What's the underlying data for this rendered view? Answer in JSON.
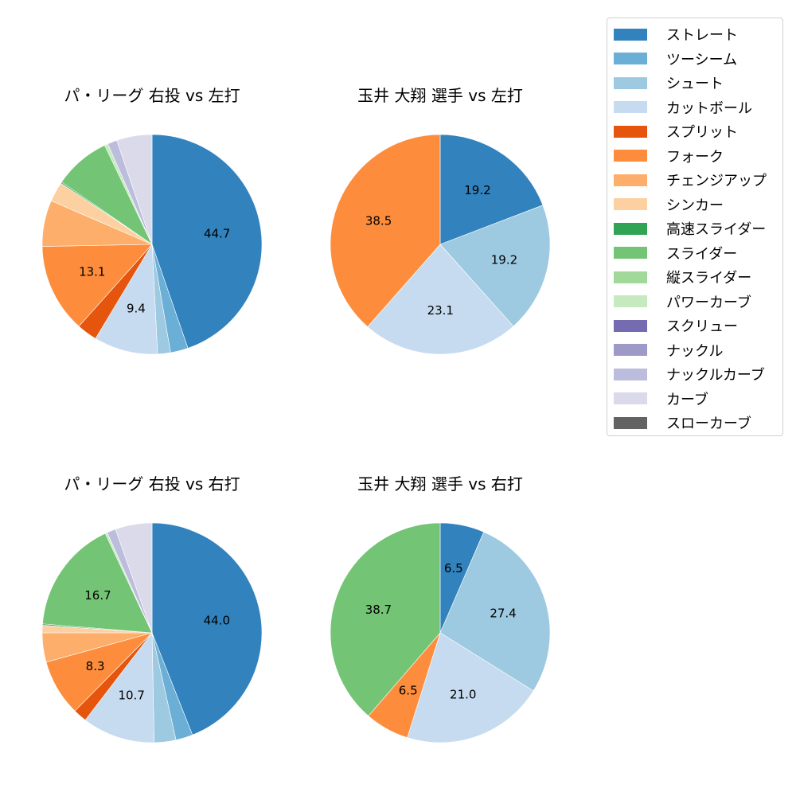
{
  "legend": {
    "items": [
      {
        "label": "ストレート",
        "color": "#3182bd"
      },
      {
        "label": "ツーシーム",
        "color": "#6baed6"
      },
      {
        "label": "シュート",
        "color": "#9ecae1"
      },
      {
        "label": "カットボール",
        "color": "#c6dbef"
      },
      {
        "label": "スプリット",
        "color": "#e6550d"
      },
      {
        "label": "フォーク",
        "color": "#fd8d3c"
      },
      {
        "label": "チェンジアップ",
        "color": "#fdae6b"
      },
      {
        "label": "シンカー",
        "color": "#fdd0a2"
      },
      {
        "label": "高速スライダー",
        "color": "#31a354"
      },
      {
        "label": "スライダー",
        "color": "#74c476"
      },
      {
        "label": "縦スライダー",
        "color": "#a1d99b"
      },
      {
        "label": "パワーカーブ",
        "color": "#c7e9c0"
      },
      {
        "label": "スクリュー",
        "color": "#756bb1"
      },
      {
        "label": "ナックル",
        "color": "#9e9ac8"
      },
      {
        "label": "ナックルカーブ",
        "color": "#bcbddc"
      },
      {
        "label": "カーブ",
        "color": "#dadaeb"
      },
      {
        "label": "スローカーブ",
        "color": "#636363"
      }
    ]
  },
  "chart_data": [
    {
      "type": "pie",
      "title": "パ・リーグ 右投 vs 左打",
      "start_angle": 90,
      "direction": "clockwise",
      "slices": [
        {
          "label": "ストレート",
          "value": 44.7,
          "shown_label": "44.7"
        },
        {
          "label": "ツーシーム",
          "value": 2.6,
          "shown_label": ""
        },
        {
          "label": "シュート",
          "value": 1.9,
          "shown_label": ""
        },
        {
          "label": "カットボール",
          "value": 9.4,
          "shown_label": "9.4"
        },
        {
          "label": "スプリット",
          "value": 3.0,
          "shown_label": ""
        },
        {
          "label": "フォーク",
          "value": 13.1,
          "shown_label": "13.1"
        },
        {
          "label": "チェンジアップ",
          "value": 6.8,
          "shown_label": ""
        },
        {
          "label": "シンカー",
          "value": 2.9,
          "shown_label": ""
        },
        {
          "label": "高速スライダー",
          "value": 0.2,
          "shown_label": ""
        },
        {
          "label": "スライダー",
          "value": 8.3,
          "shown_label": ""
        },
        {
          "label": "パワーカーブ",
          "value": 0.5,
          "shown_label": ""
        },
        {
          "label": "ナックルカーブ",
          "value": 1.4,
          "shown_label": ""
        },
        {
          "label": "カーブ",
          "value": 5.2,
          "shown_label": ""
        }
      ]
    },
    {
      "type": "pie",
      "title": "玉井 大翔 選手 vs 左打",
      "start_angle": 90,
      "direction": "clockwise",
      "slices": [
        {
          "label": "ストレート",
          "value": 19.2,
          "shown_label": "19.2"
        },
        {
          "label": "シュート",
          "value": 19.2,
          "shown_label": "19.2"
        },
        {
          "label": "カットボール",
          "value": 23.1,
          "shown_label": "23.1"
        },
        {
          "label": "フォーク",
          "value": 38.5,
          "shown_label": "38.5"
        }
      ]
    },
    {
      "type": "pie",
      "title": "パ・リーグ 右投 vs 右打",
      "start_angle": 90,
      "direction": "clockwise",
      "slices": [
        {
          "label": "ストレート",
          "value": 44.0,
          "shown_label": "44.0"
        },
        {
          "label": "ツーシーム",
          "value": 2.5,
          "shown_label": ""
        },
        {
          "label": "シュート",
          "value": 3.2,
          "shown_label": ""
        },
        {
          "label": "カットボール",
          "value": 10.7,
          "shown_label": "10.7"
        },
        {
          "label": "スプリット",
          "value": 2.0,
          "shown_label": ""
        },
        {
          "label": "フォーク",
          "value": 8.3,
          "shown_label": "8.3"
        },
        {
          "label": "チェンジアップ",
          "value": 4.3,
          "shown_label": ""
        },
        {
          "label": "シンカー",
          "value": 1.1,
          "shown_label": ""
        },
        {
          "label": "高速スライダー",
          "value": 0.2,
          "shown_label": ""
        },
        {
          "label": "スライダー",
          "value": 16.7,
          "shown_label": "16.7"
        },
        {
          "label": "パワーカーブ",
          "value": 0.3,
          "shown_label": ""
        },
        {
          "label": "ナックルカーブ",
          "value": 1.3,
          "shown_label": ""
        },
        {
          "label": "カーブ",
          "value": 5.4,
          "shown_label": ""
        }
      ]
    },
    {
      "type": "pie",
      "title": "玉井 大翔 選手 vs 右打",
      "start_angle": 90,
      "direction": "clockwise",
      "slices": [
        {
          "label": "ストレート",
          "value": 6.5,
          "shown_label": "6.5"
        },
        {
          "label": "シュート",
          "value": 27.4,
          "shown_label": "27.4"
        },
        {
          "label": "カットボール",
          "value": 21.0,
          "shown_label": "21.0"
        },
        {
          "label": "フォーク",
          "value": 6.5,
          "shown_label": "6.5"
        },
        {
          "label": "スライダー",
          "value": 38.7,
          "shown_label": "38.7"
        }
      ]
    }
  ]
}
